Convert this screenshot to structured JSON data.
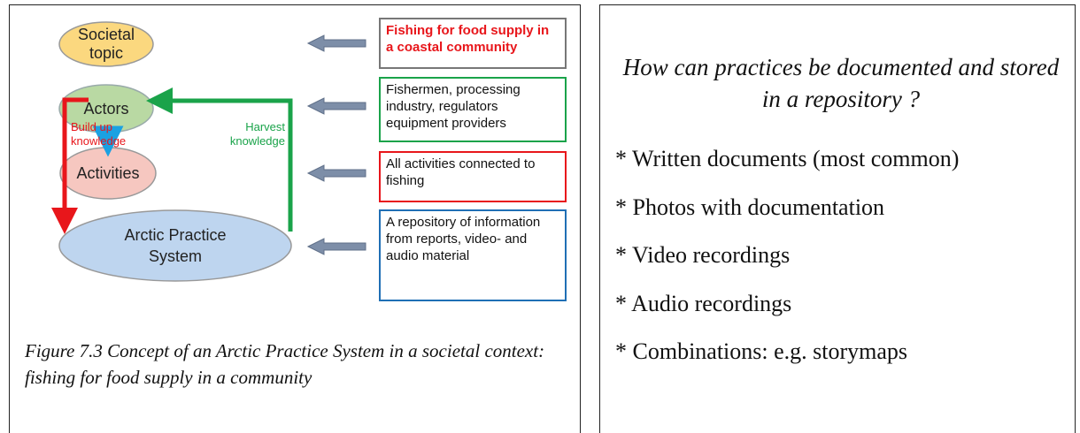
{
  "diagram": {
    "nodes": [
      {
        "label": "Societal topic"
      },
      {
        "label": "Actors"
      },
      {
        "label": "Activities"
      },
      {
        "label": "Arctic Practice System"
      }
    ],
    "arrow_labels": [
      "Build up knowledge",
      "Harvest knowledge"
    ],
    "boxes": [
      {
        "text": "Fishing for food supply in a coastal community"
      },
      {
        "text": "Fishermen, processing industry, regulators equipment providers"
      },
      {
        "text": "All activities connected to fishing"
      },
      {
        "text": "A repository of information from reports, video- and audio material"
      }
    ],
    "caption": "Figure 7.3 Concept of an Arctic Practice System in a societal context: fishing for food supply in a community"
  },
  "text_panel": {
    "question": "How can practices be documented and stored in a repository  ?",
    "items": [
      "* Written documents (most common)",
      "* Photos with documentation",
      "* Video recordings",
      "* Audio recordings",
      "* Combinations: e.g. storymaps"
    ]
  }
}
